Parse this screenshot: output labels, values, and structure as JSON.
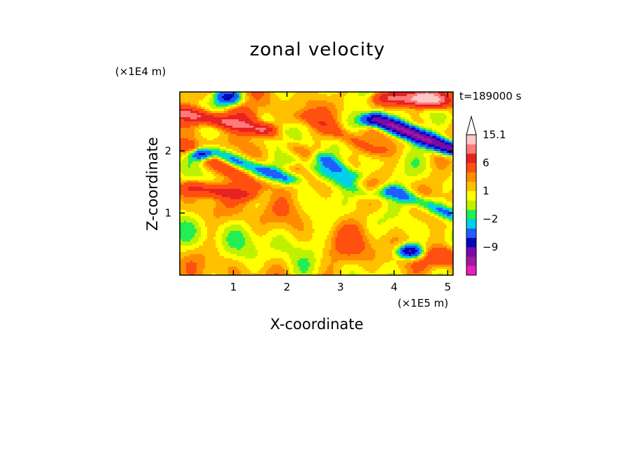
{
  "chart_data": {
    "type": "heatmap",
    "title": "zonal velocity",
    "xlabel": "X-coordinate",
    "ylabel": "Z-coordinate",
    "x_unit": "(×1E5 m)",
    "y_unit": "(×1E4 m)",
    "time_label": "t=189000 s",
    "xlim": [
      0,
      5.1
    ],
    "ylim": [
      0,
      2.95
    ],
    "x_ticks": [
      1,
      2,
      3,
      4,
      5
    ],
    "x_tick_labels": [
      "1",
      "2",
      "3",
      "4",
      "5"
    ],
    "y_ticks": [
      1,
      2
    ],
    "y_tick_labels": [
      "1",
      "2"
    ],
    "colorbar": {
      "levels": [
        -15,
        -12,
        -9,
        -6,
        -3,
        -2,
        -1,
        0,
        1,
        2,
        3,
        6,
        9,
        12,
        15.1
      ],
      "colors": [
        "#e81ebe",
        "#a01aa0",
        "#7a0aa8",
        "#0008b8",
        "#1f5eff",
        "#00d0e8",
        "#22ee55",
        "#bff000",
        "#ffff00",
        "#ffc000",
        "#ff8c00",
        "#ff5010",
        "#e82222",
        "#ff7a7a",
        "#ffc8c8"
      ],
      "labels": [
        {
          "value": 15.1,
          "text": "15.1"
        },
        {
          "value": 6,
          "text": "6"
        },
        {
          "value": 1,
          "text": "1"
        },
        {
          "value": -2,
          "text": "−2"
        },
        {
          "value": -9,
          "text": "−9"
        }
      ],
      "extend": "max"
    },
    "features": [
      {
        "type": "jet",
        "x0": 0.2,
        "z0": 2.05,
        "x1": 1.4,
        "z1": 1.45,
        "amp": 4
      },
      {
        "type": "jet",
        "x0": 0.1,
        "z0": 2.6,
        "x1": 1.5,
        "z1": 2.35,
        "amp": 9
      },
      {
        "type": "jet",
        "x0": 1.2,
        "z0": 2.6,
        "x1": 2.4,
        "z1": 2.0,
        "amp": 4
      },
      {
        "type": "jet",
        "x0": 1.6,
        "z0": 2.45,
        "x1": 3.2,
        "z1": 1.6,
        "amp": -4
      },
      {
        "type": "jet",
        "x0": 2.4,
        "z0": 2.55,
        "x1": 3.6,
        "z1": 2.0,
        "amp": 3
      },
      {
        "type": "jet",
        "x0": 0.7,
        "z0": 1.95,
        "x1": 2.0,
        "z1": 1.55,
        "amp": -5
      },
      {
        "type": "jet",
        "x0": 2.2,
        "z0": 1.85,
        "x1": 3.5,
        "z1": 1.3,
        "amp": -3
      },
      {
        "type": "jet",
        "x0": 3.7,
        "z0": 2.5,
        "x1": 5.0,
        "z1": 2.05,
        "amp": -14
      },
      {
        "type": "jet",
        "x0": 3.9,
        "z0": 2.85,
        "x1": 4.8,
        "z1": 2.8,
        "amp": 8
      },
      {
        "type": "jet",
        "x0": 0.3,
        "z0": 1.4,
        "x1": 1.2,
        "z1": 1.3,
        "amp": 6
      },
      {
        "type": "jet",
        "x0": 4.0,
        "z0": 1.35,
        "x1": 5.0,
        "z1": 1.0,
        "amp": -5
      },
      {
        "type": "blob",
        "x": 0.9,
        "z": 2.87,
        "r": 0.25,
        "amp": -8
      },
      {
        "type": "blob",
        "x": 0.4,
        "z": 1.95,
        "r": 0.18,
        "amp": -10
      },
      {
        "type": "blob",
        "x": 4.3,
        "z": 0.38,
        "r": 0.22,
        "amp": -12
      },
      {
        "type": "blob",
        "x": 2.0,
        "z": 0.6,
        "r": 0.7,
        "amp": -1.5
      },
      {
        "type": "blob",
        "x": 0.5,
        "z": 0.7,
        "r": 0.6,
        "amp": -1.2
      },
      {
        "type": "blob",
        "x": 3.2,
        "z": 0.5,
        "r": 0.7,
        "amp": 1.5
      },
      {
        "type": "blob",
        "x": 4.9,
        "z": 0.3,
        "r": 0.3,
        "amp": 5
      },
      {
        "type": "blob",
        "x": 4.6,
        "z": 2.9,
        "r": 0.3,
        "amp": 10
      },
      {
        "type": "blob",
        "x": 1.8,
        "z": 1.1,
        "r": 0.6,
        "amp": 1.5
      }
    ]
  }
}
